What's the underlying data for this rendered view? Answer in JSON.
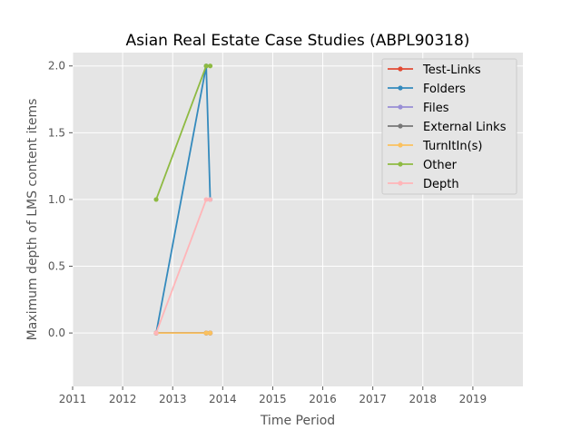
{
  "chart_data": {
    "type": "line",
    "title": "Asian Real Estate Case Studies (ABPL90318)",
    "xlabel": "Time Period",
    "ylabel": "Maximum depth of LMS content items",
    "xlim": [
      2011,
      2020
    ],
    "ylim": [
      -0.4,
      2.1
    ],
    "xticks": [
      2011,
      2012,
      2013,
      2014,
      2015,
      2016,
      2017,
      2018,
      2019
    ],
    "yticks": [
      0.0,
      0.5,
      1.0,
      1.5,
      2.0
    ],
    "ytick_labels": [
      "0.0",
      "0.5",
      "1.0",
      "1.5",
      "2.0"
    ],
    "grid": true,
    "legend_position": "top-right",
    "series": [
      {
        "name": "Test-Links",
        "color": "#E24A33",
        "x": [
          2012.67,
          2013.67,
          2013.75
        ],
        "y": [
          0,
          0,
          0
        ]
      },
      {
        "name": "Folders",
        "color": "#348ABD",
        "x": [
          2012.67,
          2013.67,
          2013.75
        ],
        "y": [
          0,
          2,
          1
        ]
      },
      {
        "name": "Files",
        "color": "#988ED5",
        "x": [
          2012.67,
          2013.67,
          2013.75
        ],
        "y": [
          0,
          0,
          0
        ]
      },
      {
        "name": "External Links",
        "color": "#777777",
        "x": [
          2012.67,
          2013.67,
          2013.75
        ],
        "y": [
          0,
          0,
          0
        ]
      },
      {
        "name": "TurnItIn(s)",
        "color": "#FBC15E",
        "x": [
          2012.67,
          2013.67,
          2013.75
        ],
        "y": [
          0,
          0,
          0
        ]
      },
      {
        "name": "Other",
        "color": "#8EBA42",
        "x": [
          2012.67,
          2013.67,
          2013.75
        ],
        "y": [
          1,
          2,
          2
        ]
      },
      {
        "name": "Depth",
        "color": "#FFB5B8",
        "x": [
          2012.67,
          2013.67,
          2013.75
        ],
        "y": [
          0,
          1,
          1
        ]
      }
    ]
  }
}
